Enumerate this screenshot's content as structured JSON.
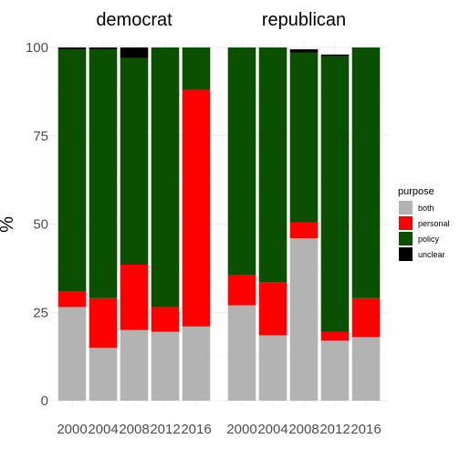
{
  "chart_data": {
    "type": "bar",
    "stacked": true,
    "ylabel": "%",
    "xlabel": "",
    "ylim": [
      0,
      100
    ],
    "yticks": [
      0,
      25,
      50,
      75,
      100
    ],
    "categories": [
      "2000",
      "2004",
      "2008",
      "2012",
      "2016"
    ],
    "stack_order": [
      "both",
      "personal",
      "policy",
      "unclear"
    ],
    "legend": {
      "title": "purpose",
      "position": "right",
      "items": [
        {
          "key": "both",
          "label": "both",
          "color": "#b3b3b3"
        },
        {
          "key": "personal",
          "label": "personal",
          "color": "#ff0000"
        },
        {
          "key": "policy",
          "label": "policy",
          "color": "#0a5000"
        },
        {
          "key": "unclear",
          "label": "unclear",
          "color": "#000000"
        }
      ]
    },
    "panels": [
      {
        "title": "democrat",
        "series": [
          {
            "name": "both",
            "values": [
              26.5,
              15,
              20,
              19.5,
              21
            ]
          },
          {
            "name": "personal",
            "values": [
              4.5,
              14,
              18.5,
              7,
              67
            ]
          },
          {
            "name": "policy",
            "values": [
              68.5,
              70.5,
              58.5,
              73.5,
              12
            ]
          },
          {
            "name": "unclear",
            "values": [
              0.5,
              0.5,
              3,
              0,
              0
            ]
          }
        ]
      },
      {
        "title": "republican",
        "series": [
          {
            "name": "both",
            "values": [
              27,
              18.5,
              46,
              17,
              18
            ]
          },
          {
            "name": "personal",
            "values": [
              8.5,
              15,
              4.5,
              2.5,
              11
            ]
          },
          {
            "name": "policy",
            "values": [
              64.5,
              66.5,
              48,
              78,
              71
            ]
          },
          {
            "name": "unclear",
            "values": [
              0,
              0,
              1,
              0.5,
              0
            ]
          }
        ]
      }
    ],
    "grid": true
  }
}
